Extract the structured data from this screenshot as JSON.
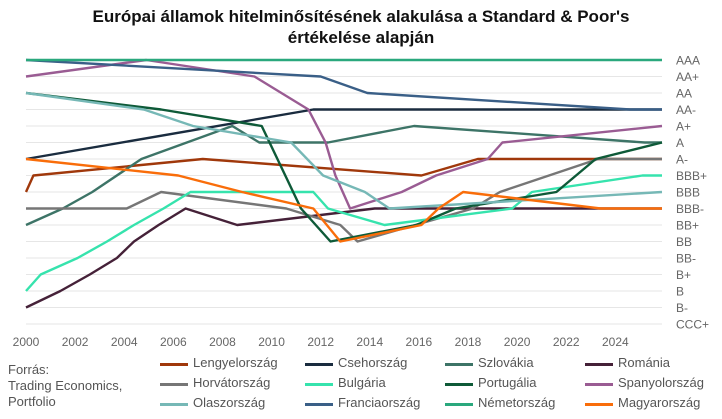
{
  "chart_data": {
    "type": "line",
    "title_lines": [
      "Európai államok hitelminősítésének alakulása a Standard & Poor's",
      "értékelése alapján"
    ],
    "xlabel": "",
    "ylabel": "",
    "x_ticks": [
      "2000",
      "2002",
      "2004",
      "2006",
      "2008",
      "2010",
      "2012",
      "2014",
      "2016",
      "2018",
      "2020",
      "2022",
      "2024"
    ],
    "xlim": [
      2000,
      2025.9
    ],
    "y_ticks": [
      "AAA",
      "AA+",
      "AA",
      "AA-",
      "A+",
      "A",
      "A-",
      "BBB+",
      "BBB",
      "BBB-",
      "BB+",
      "BB",
      "BB-",
      "B+",
      "B",
      "B-",
      "CCC+"
    ],
    "grid": true,
    "legend_position": "bottom",
    "series": [
      {
        "name": "Lengyelország",
        "color": "#a0380b",
        "points": [
          [
            2000,
            "BBB"
          ],
          [
            2000.3,
            "BBB+"
          ],
          [
            2007.2,
            "A-"
          ],
          [
            2016.1,
            "BBB+"
          ],
          [
            2018.4,
            "A-"
          ],
          [
            2025.9,
            "A-"
          ]
        ]
      },
      {
        "name": "Csehország",
        "color": "#1a2c3f",
        "points": [
          [
            2000,
            "A-"
          ],
          [
            2011.7,
            "AA-"
          ],
          [
            2025.9,
            "AA-"
          ]
        ]
      },
      {
        "name": "Szlovákia",
        "color": "#3d7467",
        "points": [
          [
            2000,
            "BB+"
          ],
          [
            2001.5,
            "BBB-"
          ],
          [
            2002.7,
            "BBB"
          ],
          [
            2004.7,
            "A-"
          ],
          [
            2008.4,
            "A+"
          ],
          [
            2009.5,
            "A"
          ],
          [
            2012.3,
            "A"
          ],
          [
            2015.8,
            "A+"
          ],
          [
            2025.2,
            "A"
          ],
          [
            2025.9,
            "A"
          ]
        ]
      },
      {
        "name": "Románia",
        "color": "#452138",
        "points": [
          [
            2000,
            "B-"
          ],
          [
            2001.4,
            "B"
          ],
          [
            2002.6,
            "B+"
          ],
          [
            2003.7,
            "BB-"
          ],
          [
            2004.4,
            "BB"
          ],
          [
            2005.4,
            "BB+"
          ],
          [
            2006.5,
            "BBB-"
          ],
          [
            2008.6,
            "BB+"
          ],
          [
            2014.2,
            "BBB-"
          ],
          [
            2025.9,
            "BBB-"
          ]
        ]
      },
      {
        "name": "Horvátország",
        "color": "#767676",
        "points": [
          [
            2000,
            "BBB-"
          ],
          [
            2004.1,
            "BBB-"
          ],
          [
            2005.5,
            "BBB"
          ],
          [
            2010.6,
            "BBB-"
          ],
          [
            2012.8,
            "BB+"
          ],
          [
            2013.5,
            "BB"
          ],
          [
            2018.2,
            "BBB-"
          ],
          [
            2019.3,
            "BBB"
          ],
          [
            2023.3,
            "A-"
          ],
          [
            2025.9,
            "A-"
          ]
        ]
      },
      {
        "name": "Bulgária",
        "color": "#36e3ad",
        "points": [
          [
            2000,
            "B"
          ],
          [
            2000.6,
            "B+"
          ],
          [
            2002.1,
            "BB-"
          ],
          [
            2003.3,
            "BB"
          ],
          [
            2004.4,
            "BB+"
          ],
          [
            2005.6,
            "BBB-"
          ],
          [
            2006.7,
            "BBB"
          ],
          [
            2011.7,
            "BBB"
          ],
          [
            2012.3,
            "BBB-"
          ],
          [
            2014.6,
            "BB+"
          ],
          [
            2019.8,
            "BBB-"
          ],
          [
            2020.6,
            "BBB"
          ],
          [
            2025.1,
            "BBB+"
          ],
          [
            2025.9,
            "BBB+"
          ]
        ]
      },
      {
        "name": "Portugália",
        "color": "#0e5a38",
        "points": [
          [
            2000,
            "AA"
          ],
          [
            2005.5,
            "AA-"
          ],
          [
            2009.6,
            "A+"
          ],
          [
            2011.2,
            "BBB-"
          ],
          [
            2012.4,
            "BB"
          ],
          [
            2015.9,
            "BB+"
          ],
          [
            2017.5,
            "BBB-"
          ],
          [
            2021.6,
            "BBB"
          ],
          [
            2023.2,
            "A-"
          ],
          [
            2025.9,
            "A"
          ]
        ]
      },
      {
        "name": "Spanyolország",
        "color": "#9a5c93",
        "points": [
          [
            2000,
            "AA+"
          ],
          [
            2004.9,
            "AAA"
          ],
          [
            2009.3,
            "AA+"
          ],
          [
            2010.4,
            "AA"
          ],
          [
            2011.5,
            "AA-"
          ],
          [
            2012.2,
            "A"
          ],
          [
            2012.6,
            "BBB+"
          ],
          [
            2013.2,
            "BBB-"
          ],
          [
            2015.3,
            "BBB"
          ],
          [
            2016.7,
            "BBB+"
          ],
          [
            2018.8,
            "A-"
          ],
          [
            2019.4,
            "A"
          ],
          [
            2025.9,
            "A+"
          ]
        ]
      },
      {
        "name": "Olaszország",
        "color": "#76b8b6",
        "points": [
          [
            2000,
            "AA"
          ],
          [
            2004.8,
            "AA-"
          ],
          [
            2006.8,
            "A+"
          ],
          [
            2010.8,
            "A"
          ],
          [
            2012.1,
            "BBB+"
          ],
          [
            2013.8,
            "BBB"
          ],
          [
            2014.8,
            "BBB-"
          ],
          [
            2025.9,
            "BBB"
          ]
        ]
      },
      {
        "name": "Franciaország",
        "color": "#3a5f87",
        "points": [
          [
            2000,
            "AAA"
          ],
          [
            2012.0,
            "AA+"
          ],
          [
            2013.9,
            "AA"
          ],
          [
            2024.6,
            "AA-"
          ],
          [
            2025.9,
            "AA-"
          ]
        ]
      },
      {
        "name": "Németország",
        "color": "#2aa87d",
        "points": [
          [
            2000,
            "AAA"
          ],
          [
            2025.9,
            "AAA"
          ]
        ]
      },
      {
        "name": "Magyarország",
        "color": "#f96d0a",
        "points": [
          [
            2000,
            "A-"
          ],
          [
            2006.2,
            "BBB+"
          ],
          [
            2008.8,
            "BBB"
          ],
          [
            2011.7,
            "BBB-"
          ],
          [
            2012.8,
            "BB"
          ],
          [
            2016.1,
            "BB+"
          ],
          [
            2016.8,
            "BBB-"
          ],
          [
            2017.8,
            "BBB"
          ],
          [
            2023.4,
            "BBB-"
          ],
          [
            2025.9,
            "BBB-"
          ]
        ]
      }
    ]
  },
  "source": {
    "lines": [
      "Forrás:",
      "Trading Economics,",
      "Portfolio"
    ]
  }
}
